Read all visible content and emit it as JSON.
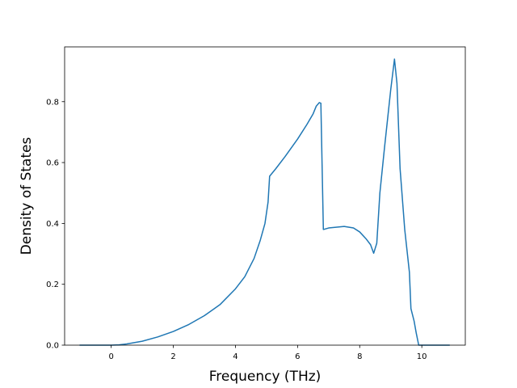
{
  "chart_data": {
    "type": "line",
    "title": "",
    "xlabel": "Frequency (THz)",
    "ylabel": "Density of States",
    "xlim": [
      -1.5,
      11.4
    ],
    "ylim": [
      0.0,
      0.98
    ],
    "xticks": [
      0,
      2,
      4,
      6,
      8,
      10
    ],
    "yticks": [
      0.0,
      0.2,
      0.4,
      0.6,
      0.8
    ],
    "xtick_labels": [
      "0",
      "2",
      "4",
      "6",
      "8",
      "10"
    ],
    "ytick_labels": [
      "0.0",
      "0.2",
      "0.4",
      "0.6",
      "0.8"
    ],
    "grid": false,
    "legend": "none",
    "color": "#1f77b4",
    "series": [
      {
        "x": [
          -1.0,
          0.0,
          0.25,
          0.5,
          1.0,
          1.5,
          2.0,
          2.5,
          3.0,
          3.5,
          4.0,
          4.3,
          4.6,
          4.8,
          4.95,
          5.05,
          5.1,
          5.3,
          5.6,
          6.0,
          6.3,
          6.5,
          6.6,
          6.7,
          6.75,
          6.83,
          7.0,
          7.5,
          7.8,
          8.0,
          8.2,
          8.35,
          8.45,
          8.55,
          8.65,
          8.8,
          9.0,
          9.12,
          9.2,
          9.3,
          9.45,
          9.6,
          9.65,
          9.75,
          9.82,
          9.9,
          10.0,
          10.5,
          10.88
        ],
        "y": [
          0.0,
          0.0,
          0.001,
          0.004,
          0.013,
          0.027,
          0.045,
          0.068,
          0.097,
          0.133,
          0.185,
          0.225,
          0.285,
          0.345,
          0.4,
          0.47,
          0.555,
          0.58,
          0.62,
          0.677,
          0.725,
          0.76,
          0.785,
          0.797,
          0.795,
          0.38,
          0.385,
          0.39,
          0.385,
          0.372,
          0.35,
          0.33,
          0.302,
          0.335,
          0.5,
          0.65,
          0.84,
          0.94,
          0.86,
          0.58,
          0.38,
          0.24,
          0.12,
          0.08,
          0.04,
          0.0,
          0.0,
          0.0,
          0.0
        ]
      }
    ]
  }
}
